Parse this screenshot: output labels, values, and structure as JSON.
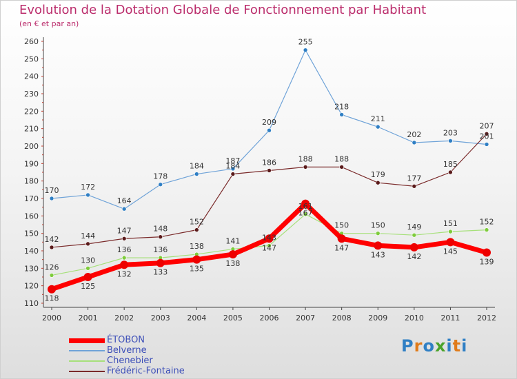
{
  "title": "Evolution de la Dotation Globale de Fonctionnement par Habitant",
  "subtitle": "(en € et par an)",
  "logo": {
    "text": "Proxiti"
  },
  "chart_data": {
    "type": "line",
    "title": "Evolution de la Dotation Globale de Fonctionnement par Habitant",
    "subtitle": "(en € et par an)",
    "x": [
      "2000",
      "2001",
      "2002",
      "2003",
      "2004",
      "2005",
      "2006",
      "2007",
      "2008",
      "2009",
      "2010",
      "2011",
      "2012"
    ],
    "ylim": [
      110,
      260
    ],
    "yticks": [
      110,
      120,
      130,
      140,
      150,
      160,
      170,
      180,
      190,
      200,
      210,
      220,
      230,
      240,
      250,
      260
    ],
    "grid": false,
    "legend_position": "bottom-left",
    "series": [
      {
        "name": "Belverne",
        "color": "#6fa3d8",
        "marker": "#2f7fc4",
        "width": 1.2,
        "values": [
          170,
          172,
          164,
          178,
          184,
          187,
          209,
          255,
          218,
          211,
          202,
          203,
          201
        ]
      },
      {
        "name": "Frédéric-Fontaine",
        "color": "#7a2a2a",
        "marker": "#5a1a1a",
        "width": 1.2,
        "values": [
          142,
          144,
          147,
          148,
          152,
          184,
          186,
          188,
          188,
          179,
          177,
          185,
          207
        ]
      },
      {
        "name": "Chenebier",
        "color": "#a6e07a",
        "marker": "#7ecb3c",
        "width": 1.2,
        "values": [
          126,
          130,
          136,
          136,
          138,
          141,
          143,
          161,
          150,
          150,
          149,
          151,
          152
        ]
      },
      {
        "name": "ÉTOBON",
        "color": "#ff0000",
        "marker": "#ee0000",
        "width": 7,
        "values": [
          118,
          125,
          132,
          133,
          135,
          138,
          147,
          167,
          147,
          143,
          142,
          145,
          139
        ]
      }
    ],
    "legend": [
      {
        "name": "ÉTOBON",
        "color": "#ff0000",
        "thickness": 7
      },
      {
        "name": "Belverne",
        "color": "#6fa3d8",
        "thickness": 2
      },
      {
        "name": "Chenebier",
        "color": "#a6e07a",
        "thickness": 2
      },
      {
        "name": "Frédéric-Fontaine",
        "color": "#7a2a2a",
        "thickness": 2
      }
    ]
  }
}
